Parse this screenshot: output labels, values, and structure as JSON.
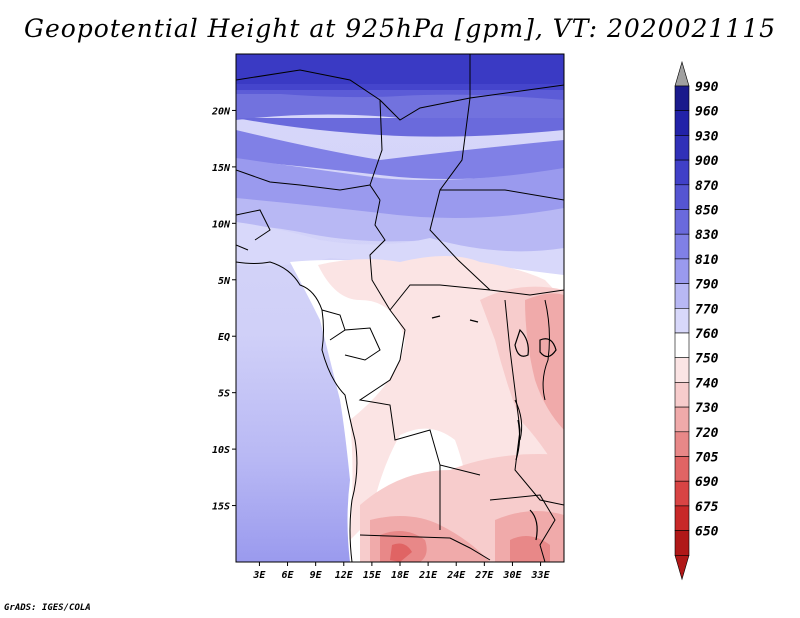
{
  "map": {
    "title": "Geopotential Height at 925hPa [gpm], VT: 2020021115",
    "footer": "GrADS: IGES/COLA",
    "lat_ticks": [
      {
        "label": "20N",
        "lat": 20
      },
      {
        "label": "15N",
        "lat": 15
      },
      {
        "label": "10N",
        "lat": 10
      },
      {
        "label": "5N",
        "lat": 5
      },
      {
        "label": "EQ",
        "lat": 0
      },
      {
        "label": "5S",
        "lat": -5
      },
      {
        "label": "10S",
        "lat": -10
      },
      {
        "label": "15S",
        "lat": -15
      }
    ],
    "lon_ticks": [
      {
        "label": "3E",
        "lon": 3
      },
      {
        "label": "6E",
        "lon": 6
      },
      {
        "label": "9E",
        "lon": 9
      },
      {
        "label": "12E",
        "lon": 12
      },
      {
        "label": "15E",
        "lon": 15
      },
      {
        "label": "18E",
        "lon": 18
      },
      {
        "label": "21E",
        "lon": 21
      },
      {
        "label": "24E",
        "lon": 24
      },
      {
        "label": "27E",
        "lon": 27
      },
      {
        "label": "30E",
        "lon": 30
      },
      {
        "label": "33E",
        "lon": 33
      }
    ],
    "lon_range": [
      0.5,
      35.5
    ],
    "lat_range": [
      -20,
      25
    ],
    "fill_regions": [
      {
        "level": "990",
        "description": "northern band",
        "lat": [
          22.5,
          25
        ]
      },
      {
        "level": "870",
        "lat": [
          19,
          22.5
        ]
      },
      {
        "level": "850",
        "lat": [
          16,
          19
        ]
      },
      {
        "level": "830",
        "lat": [
          13,
          16
        ]
      },
      {
        "level": "810",
        "lat": [
          10.5,
          13
        ]
      },
      {
        "level": "790",
        "lat": [
          8,
          10.5
        ]
      }
    ]
  },
  "colorbar": {
    "levels": [
      "990",
      "960",
      "930",
      "900",
      "870",
      "850",
      "830",
      "810",
      "790",
      "770",
      "760",
      "750",
      "740",
      "730",
      "720",
      "705",
      "690",
      "675",
      "650"
    ],
    "colors": [
      "#1a1a8c",
      "#2222a8",
      "#3030b8",
      "#4040c8",
      "#5555d2",
      "#6a6adc",
      "#8080e6",
      "#9a9aee",
      "#b8b8f4",
      "#d8d8fa",
      "#ffffff",
      "#fbe4e4",
      "#f7cccc",
      "#f0aaaa",
      "#e88888",
      "#e06464",
      "#d84444",
      "#c82828",
      "#b01818"
    ],
    "top_arrow_color": "#a0a0a0",
    "bottom_arrow_color": "#b01818"
  }
}
